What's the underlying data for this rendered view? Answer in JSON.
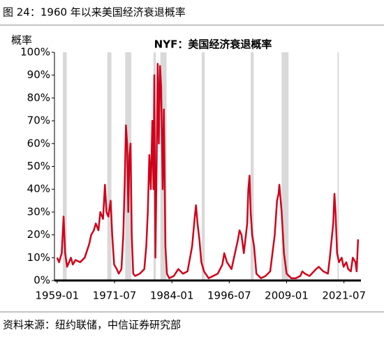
{
  "header": {
    "title": "图 24：1960 年以来美国经济衰退概率"
  },
  "chart_data": {
    "type": "line",
    "title": "NYF：美国经济衰退概率",
    "y_label": "概率",
    "color": "#d0021b",
    "shade_color": "#d9d9d9",
    "xlim": [
      "1958-06",
      "2026-06"
    ],
    "xticks": [
      "1959-01",
      "1971-07",
      "1984-01",
      "1996-07",
      "2009-01",
      "2021-07"
    ],
    "ylim": [
      0,
      100
    ],
    "yticks": [
      {
        "value": 0,
        "label": "0%"
      },
      {
        "value": 10,
        "label": "10%"
      },
      {
        "value": 20,
        "label": "20%"
      },
      {
        "value": 30,
        "label": "30%"
      },
      {
        "value": 40,
        "label": "40%"
      },
      {
        "value": 50,
        "label": "50%"
      },
      {
        "value": 60,
        "label": "60%"
      },
      {
        "value": 70,
        "label": "70%"
      },
      {
        "value": 80,
        "label": "80%"
      },
      {
        "value": 90,
        "label": "90%"
      },
      {
        "value": 100,
        "label": "100%"
      }
    ],
    "shaded_periods": [
      [
        "1960-04",
        "1961-02"
      ],
      [
        "1969-12",
        "1970-11"
      ],
      [
        "1973-11",
        "1975-03"
      ],
      [
        "1980-01",
        "1980-07"
      ],
      [
        "1981-07",
        "1982-11"
      ],
      [
        "1990-07",
        "1991-03"
      ],
      [
        "2001-03",
        "2001-11"
      ],
      [
        "2007-12",
        "2009-06"
      ],
      [
        "2020-02",
        "2020-04"
      ]
    ],
    "x": [
      "1959-01",
      "1959-06",
      "1960-01",
      "1960-06",
      "1960-10",
      "1961-03",
      "1962-01",
      "1962-06",
      "1963-01",
      "1964-01",
      "1965-01",
      "1966-01",
      "1966-06",
      "1967-01",
      "1967-06",
      "1968-01",
      "1968-06",
      "1969-01",
      "1969-06",
      "1969-10",
      "1970-03",
      "1970-09",
      "1971-01",
      "1971-06",
      "1972-01",
      "1972-06",
      "1973-01",
      "1973-06",
      "1973-10",
      "1974-01",
      "1974-04",
      "1974-07",
      "1974-10",
      "1975-01",
      "1975-04",
      "1975-08",
      "1976-01",
      "1977-01",
      "1978-01",
      "1978-06",
      "1978-10",
      "1979-02",
      "1979-06",
      "1979-10",
      "1980-01",
      "1980-03",
      "1980-06",
      "1980-09",
      "1980-12",
      "1981-03",
      "1981-06",
      "1981-09",
      "1982-01",
      "1982-04",
      "1982-08",
      "1982-12",
      "1983-06",
      "1984-06",
      "1985-06",
      "1986-06",
      "1987-06",
      "1988-06",
      "1989-01",
      "1989-04",
      "1989-08",
      "1990-01",
      "1990-06",
      "1991-01",
      "1992-01",
      "1993-01",
      "1994-01",
      "1995-01",
      "1995-06",
      "1996-01",
      "1997-01",
      "1998-06",
      "1998-10",
      "1999-03",
      "1999-09",
      "2000-06",
      "2000-09",
      "2000-12",
      "2001-03",
      "2001-07",
      "2001-12",
      "2002-06",
      "2003-06",
      "2004-06",
      "2005-06",
      "2006-06",
      "2006-12",
      "2007-04",
      "2007-06",
      "2007-12",
      "2008-06",
      "2009-01",
      "2010-01",
      "2011-01",
      "2012-01",
      "2012-06",
      "2013-01",
      "2014-01",
      "2015-06",
      "2016-01",
      "2017-01",
      "2018-01",
      "2018-06",
      "2019-03",
      "2019-06",
      "2019-09",
      "2020-01",
      "2020-06",
      "2021-01",
      "2021-06",
      "2022-01",
      "2022-06",
      "2023-01",
      "2023-06",
      "2024-01",
      "2024-04",
      "2024-08"
    ],
    "values": [
      10,
      8,
      12,
      28,
      12,
      6,
      10,
      7,
      9,
      8,
      10,
      16,
      20,
      22,
      25,
      22,
      30,
      27,
      42,
      30,
      28,
      35,
      20,
      7,
      5,
      3,
      5,
      20,
      45,
      68,
      60,
      30,
      55,
      60,
      20,
      3,
      2,
      3,
      5,
      15,
      30,
      55,
      40,
      70,
      40,
      90,
      10,
      50,
      95,
      60,
      94,
      85,
      40,
      75,
      15,
      3,
      1,
      2,
      5,
      3,
      4,
      15,
      28,
      33,
      25,
      18,
      8,
      4,
      1,
      2,
      3,
      7,
      12,
      8,
      5,
      18,
      22,
      20,
      12,
      25,
      40,
      46,
      30,
      20,
      15,
      3,
      1,
      2,
      4,
      20,
      35,
      38,
      42,
      30,
      12,
      3,
      1,
      1,
      2,
      4,
      3,
      2,
      5,
      6,
      4,
      3,
      10,
      25,
      38,
      30,
      12,
      8,
      10,
      6,
      8,
      5,
      4,
      10,
      8,
      4,
      18
    ]
  },
  "footer": {
    "source": "资料来源：纽约联储，中信证券研究部"
  }
}
